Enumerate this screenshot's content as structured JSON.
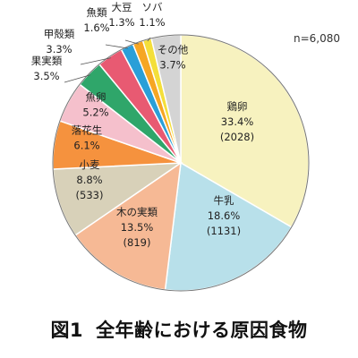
{
  "caption": {
    "figure_number": "図1",
    "title": "全年齢における原因食物"
  },
  "chart_data": {
    "type": "pie",
    "title": "",
    "note": "n=6,080",
    "total": 6080,
    "start": "12 o'clock",
    "direction": "clockwise",
    "slices": [
      {
        "label": "鶏卵",
        "percent_text": "33.4%",
        "count_text": "(2028)",
        "value": 33.4,
        "count": 2028,
        "color": "#f7f2bf",
        "label_placement": "inside"
      },
      {
        "label": "牛乳",
        "percent_text": "18.6%",
        "count_text": "(1131)",
        "value": 18.6,
        "count": 1131,
        "color": "#b8e0ea",
        "label_placement": "inside"
      },
      {
        "label": "木の実類",
        "percent_text": "13.5%",
        "count_text": "(819)",
        "value": 13.5,
        "count": 819,
        "color": "#f6b995",
        "label_placement": "inside"
      },
      {
        "label": "小麦",
        "percent_text": "8.8%",
        "count_text": "(533)",
        "value": 8.8,
        "count": 533,
        "color": "#d8d1b9",
        "label_placement": "inside"
      },
      {
        "label": "落花生",
        "percent_text": "6.1%",
        "count_text": "",
        "value": 6.1,
        "color": "#f5923e",
        "label_placement": "inside"
      },
      {
        "label": "魚卵",
        "percent_text": "5.2%",
        "count_text": "",
        "value": 5.2,
        "color": "#f5c0cc",
        "label_placement": "inside"
      },
      {
        "label": "果実類",
        "percent_text": "3.5%",
        "count_text": "",
        "value": 3.5,
        "color": "#2fa66a",
        "label_placement": "outside"
      },
      {
        "label": "甲殻類",
        "percent_text": "3.3%",
        "count_text": "",
        "value": 3.3,
        "color": "#e85a72",
        "label_placement": "outside"
      },
      {
        "label": "魚類",
        "percent_text": "1.6%",
        "count_text": "",
        "value": 1.6,
        "color": "#2a9fd8",
        "label_placement": "outside"
      },
      {
        "label": "大豆",
        "percent_text": "1.3%",
        "count_text": "",
        "value": 1.3,
        "color": "#f6a623",
        "label_placement": "outside"
      },
      {
        "label": "ソバ",
        "percent_text": "1.1%",
        "count_text": "",
        "value": 1.1,
        "color": "#f4df3a",
        "label_placement": "outside"
      },
      {
        "label": "その他",
        "percent_text": "3.7%",
        "count_text": "",
        "value": 3.7,
        "color": "#d4d4d4",
        "label_placement": "inside"
      }
    ]
  }
}
